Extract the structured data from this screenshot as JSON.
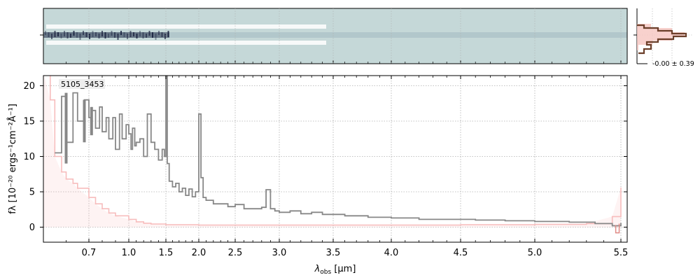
{
  "colors": {
    "spectrum": "#878787",
    "error": "#f7bcbc",
    "model": "#e08a85",
    "profile": "#6b3f2a",
    "profile_fill": "#f7c9c4",
    "image_bg": "#c5d8d8",
    "grid": "#b0b0b0"
  },
  "chart_data": [
    {
      "type": "line",
      "id": "spectrum",
      "annotation": "5105_3453",
      "xlabel_base": "λ",
      "xlabel_sub": "obs",
      "xlabel_unit": " [μm]",
      "ylabel": "fλ [10⁻²⁰ ergs⁻¹cm⁻²Å⁻¹]",
      "xlim": [
        0.5,
        5.52
      ],
      "ylim": [
        -2.2,
        22
      ],
      "x_scale": "piecewise: stretched below ~2 μm (prism dispersion), tick labels in μm",
      "x_ticks": [
        0.7,
        1.0,
        1.5,
        2.0,
        2.5,
        3.0,
        3.5,
        4.0,
        4.5,
        5.0,
        5.5
      ],
      "x_tick_labels": [
        "0.7",
        "1.0",
        "1.5",
        "2.0",
        "2.5",
        "3.0",
        "3.5",
        "4.0",
        "4.5",
        "5.0",
        "5.5"
      ],
      "y_ticks": [
        0,
        5,
        10,
        15,
        20
      ],
      "y_tick_labels": [
        "0",
        "5",
        "10",
        "15",
        "20"
      ],
      "grid": true,
      "series": [
        {
          "role": "flux",
          "x": [
            0.55,
            0.58,
            0.6,
            0.63,
            0.65,
            0.68,
            0.7,
            0.72,
            0.75,
            0.78,
            0.8,
            0.83,
            0.85,
            0.88,
            0.9,
            0.93,
            0.95,
            0.98,
            1.0,
            1.03,
            1.05,
            1.08,
            1.1,
            1.15,
            1.2,
            1.25,
            1.3,
            1.35,
            1.4,
            1.45,
            1.48,
            1.5,
            1.52,
            1.55,
            1.6,
            1.65,
            1.7,
            1.75,
            1.8,
            1.85,
            1.9,
            1.95,
            2.0,
            2.03,
            2.06,
            2.1,
            2.2,
            2.3,
            2.4,
            2.5,
            2.6,
            2.7,
            2.8,
            2.85,
            2.9,
            2.95,
            3.0,
            3.1,
            3.2,
            3.3,
            3.4,
            3.5,
            3.6,
            3.7,
            3.8,
            3.9,
            4.0,
            4.2,
            4.4,
            4.6,
            4.8,
            5.0,
            5.2,
            5.35,
            5.45,
            5.5
          ],
          "y": [
            10.5,
            18.5,
            12,
            19,
            15,
            18,
            15.5,
            16.5,
            14,
            17,
            13.5,
            15.5,
            12.5,
            15.5,
            11,
            16,
            12.5,
            14.5,
            13.2,
            11,
            14,
            11.5,
            12,
            12.5,
            10,
            16,
            12,
            11,
            9.5,
            11,
            10,
            22,
            9,
            6.5,
            5.7,
            6.2,
            5,
            5.5,
            4.5,
            5.4,
            4.3,
            5,
            16,
            7,
            4.2,
            3.8,
            3.3,
            3.3,
            2.9,
            3.2,
            2.6,
            2.6,
            2.8,
            5.3,
            2.6,
            2.3,
            2.1,
            2.3,
            1.9,
            2.1,
            1.8,
            1.8,
            1.6,
            1.6,
            1.4,
            1.4,
            1.3,
            1.1,
            1.1,
            1.0,
            0.9,
            0.8,
            0.7,
            0.5,
            0.2,
            0.6
          ]
        },
        {
          "role": "uncertainty",
          "x": [
            0.5,
            0.53,
            0.55,
            0.58,
            0.6,
            0.63,
            0.65,
            0.7,
            0.75,
            0.8,
            0.85,
            0.9,
            1.0,
            1.1,
            1.2,
            1.3,
            1.5,
            2.0,
            2.5,
            3.0,
            3.5,
            4.0,
            4.5,
            5.0,
            5.3,
            5.45,
            5.5
          ],
          "y": [
            22,
            18,
            10,
            7.8,
            6.8,
            6.2,
            5.5,
            4.2,
            3.3,
            2.6,
            2.0,
            1.6,
            1.1,
            0.75,
            0.55,
            0.45,
            0.35,
            0.3,
            0.3,
            0.3,
            0.3,
            0.3,
            0.35,
            0.4,
            0.5,
            1.5,
            5.6
          ]
        }
      ]
    },
    {
      "type": "heatmap",
      "id": "2d-spectrum",
      "description_colors": [
        "#c5d8d8",
        "#ffffff",
        "#0a1030"
      ]
    },
    {
      "type": "line",
      "id": "cross-dispersion-profile",
      "annotation": "-0.00 ± 0.39"
    }
  ]
}
